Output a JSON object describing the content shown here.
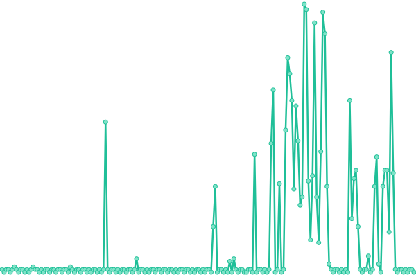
{
  "chart_data": {
    "type": "line",
    "color": "#1fbf98",
    "marker_color": "#7fe3c8",
    "xlim": [
      0,
      199
    ],
    "ylim": [
      0,
      100
    ],
    "x": [
      0,
      1,
      2,
      3,
      4,
      5,
      6,
      7,
      8,
      9,
      10,
      11,
      12,
      13,
      14,
      15,
      16,
      17,
      18,
      19,
      20,
      21,
      22,
      23,
      24,
      25,
      26,
      27,
      28,
      29,
      30,
      31,
      32,
      33,
      34,
      35,
      36,
      37,
      38,
      39,
      40,
      41,
      42,
      43,
      44,
      45,
      46,
      47,
      48,
      49,
      50,
      51,
      52,
      53,
      54,
      55,
      56,
      57,
      58,
      59,
      60,
      61,
      62,
      63,
      64,
      65,
      66,
      67,
      68,
      69,
      70,
      71,
      72,
      73,
      74,
      75,
      76,
      77,
      78,
      79,
      80,
      81,
      82,
      83,
      84,
      85,
      86,
      87,
      88,
      89,
      90,
      91,
      92,
      93,
      94,
      95,
      96,
      97,
      98,
      99,
      100,
      101,
      102,
      103,
      104,
      105,
      106,
      107,
      108,
      109,
      110,
      111,
      112,
      113,
      114,
      115,
      116,
      117,
      118,
      119,
      120,
      121,
      122,
      123,
      124,
      125,
      126,
      127,
      128,
      129,
      130,
      131,
      132,
      133,
      134,
      135,
      136,
      137,
      138,
      139,
      140,
      141,
      142,
      143,
      144,
      145,
      146,
      147,
      148,
      149,
      150,
      151,
      152,
      153,
      154,
      155,
      156,
      157,
      158,
      159,
      160,
      161,
      162,
      163,
      164,
      165,
      166,
      167,
      168,
      169,
      170,
      171,
      172,
      173,
      174,
      175,
      176,
      177,
      178,
      179,
      180,
      181,
      182,
      183,
      184,
      185,
      186,
      187,
      188,
      189,
      190,
      191,
      192,
      193,
      194,
      195,
      196,
      197,
      198,
      199
    ],
    "values": [
      1,
      0,
      1,
      1,
      0,
      1,
      2,
      1,
      0,
      1,
      1,
      0,
      1,
      0,
      1,
      2,
      1,
      1,
      0,
      1,
      0,
      1,
      1,
      0,
      1,
      1,
      0,
      1,
      1,
      0,
      1,
      1,
      0,
      2,
      1,
      0,
      1,
      1,
      0,
      1,
      1,
      0,
      1,
      0,
      1,
      1,
      0,
      1,
      0,
      1,
      56,
      1,
      0,
      1,
      1,
      0,
      1,
      0,
      1,
      1,
      0,
      1,
      1,
      0,
      1,
      5,
      0,
      1,
      1,
      0,
      1,
      0,
      1,
      1,
      0,
      1,
      1,
      0,
      1,
      1,
      0,
      1,
      1,
      0,
      1,
      0,
      1,
      1,
      0,
      1,
      1,
      0,
      1,
      0,
      1,
      1,
      0,
      1,
      0,
      1,
      1,
      0,
      17,
      32,
      0,
      1,
      1,
      0,
      1,
      0,
      4,
      0,
      5,
      1,
      0,
      1,
      1,
      0,
      0,
      1,
      1,
      0,
      44,
      0,
      1,
      1,
      0,
      1,
      0,
      1,
      48,
      68,
      0,
      1,
      33,
      0,
      1,
      53,
      80,
      74,
      64,
      31,
      62,
      49,
      25,
      28,
      100,
      98,
      34,
      12,
      36,
      93,
      28,
      11,
      45,
      97,
      89,
      32,
      3,
      1,
      0,
      1,
      1,
      0,
      1,
      0,
      1,
      0,
      64,
      20,
      35,
      38,
      17,
      1,
      0,
      1,
      1,
      6,
      0,
      1,
      32,
      43,
      3,
      0,
      32,
      38,
      38,
      15,
      82,
      37,
      1,
      0,
      1,
      1,
      0,
      1,
      0,
      1,
      1,
      0
    ]
  }
}
